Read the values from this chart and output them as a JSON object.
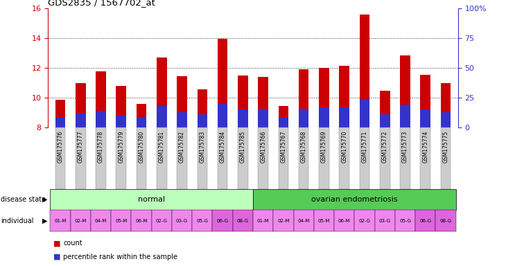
{
  "title": "GDS2835 / 1567702_at",
  "samples": [
    "GSM175776",
    "GSM175777",
    "GSM175778",
    "GSM175779",
    "GSM175780",
    "GSM175781",
    "GSM175782",
    "GSM175783",
    "GSM175784",
    "GSM175785",
    "GSM175766",
    "GSM175767",
    "GSM175768",
    "GSM175769",
    "GSM175770",
    "GSM175771",
    "GSM175772",
    "GSM175773",
    "GSM175774",
    "GSM175775"
  ],
  "counts": [
    9.85,
    11.0,
    11.75,
    10.8,
    9.6,
    12.7,
    11.45,
    10.55,
    13.95,
    11.5,
    11.4,
    9.45,
    11.9,
    12.0,
    12.15,
    15.55,
    10.45,
    12.85,
    11.55,
    11.0
  ],
  "percentile_ranks_pct": [
    8,
    12,
    14,
    10,
    9,
    18,
    13,
    11,
    20,
    15,
    16,
    8,
    16,
    17,
    17,
    24,
    11,
    19,
    15,
    13
  ],
  "bar_base": 8.0,
  "ylim_left": [
    8,
    16
  ],
  "ylim_right": [
    0,
    100
  ],
  "yticks_left": [
    8,
    10,
    12,
    14,
    16
  ],
  "yticks_right": [
    0,
    25,
    50,
    75,
    100
  ],
  "bar_color_red": "#cc0000",
  "bar_color_blue": "#3333cc",
  "disease_state_groups": [
    {
      "label": "normal",
      "start": 0,
      "end": 9,
      "color": "#bbffbb"
    },
    {
      "label": "ovarian endometriosis",
      "start": 10,
      "end": 19,
      "color": "#55cc55"
    }
  ],
  "individual_labels": [
    "01-M",
    "02-M",
    "04-M",
    "05-M",
    "06-M",
    "02-G",
    "03-G",
    "05-G",
    "06-G",
    "08-G",
    "01-M",
    "02-M",
    "04-M",
    "05-M",
    "06-M",
    "02-G",
    "03-G",
    "05-G",
    "06-G",
    "08-G"
  ],
  "individual_color_light": "#ee88ee",
  "individual_color_dark": "#dd66dd",
  "left_axis_color": "#cc0000",
  "right_axis_color": "#3333cc",
  "xticklabel_bg": "#cccccc",
  "legend_count_color": "#cc0000",
  "legend_pct_color": "#3333cc"
}
